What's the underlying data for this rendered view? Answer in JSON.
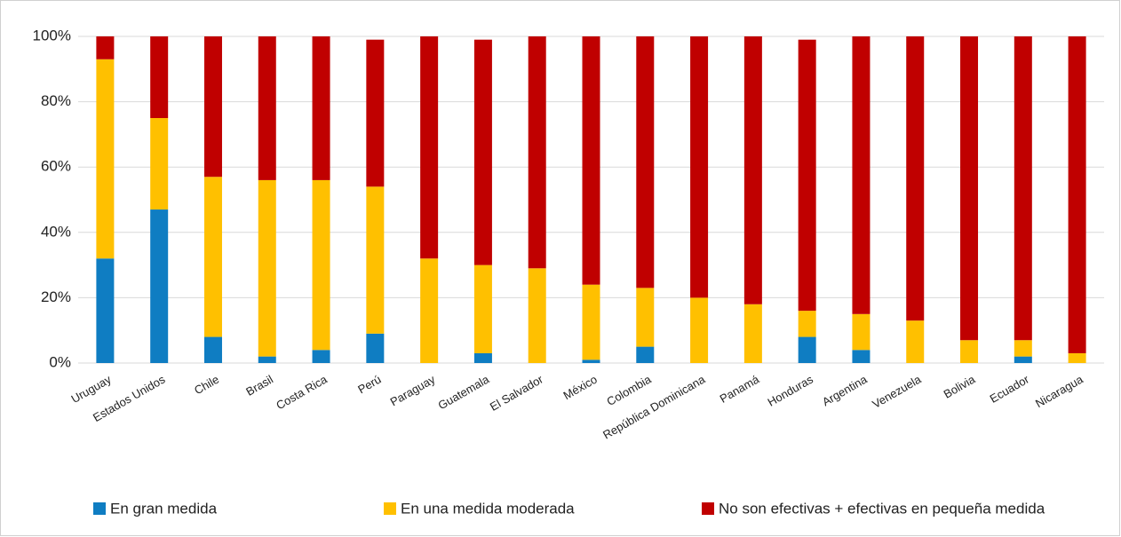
{
  "chart_data": {
    "type": "stacked_bar",
    "categories": [
      "Uruguay",
      "Estados Unidos",
      "Chile",
      "Brasil",
      "Costa Rica",
      "Perú",
      "Paraguay",
      "Guatemala",
      "El Salvador",
      "México",
      "Colombia",
      "República Dominicana",
      "Panamá",
      "Honduras",
      "Argentina",
      "Venezuela",
      "Bolivia",
      "Ecuador",
      "Nicaragua"
    ],
    "series": [
      {
        "name": "En gran medida",
        "color": "#0f7dc2",
        "values": [
          32,
          47,
          8,
          2,
          4,
          9,
          0,
          3,
          0,
          1,
          5,
          0,
          0,
          8,
          4,
          0,
          0,
          2,
          0
        ]
      },
      {
        "name": "En una medida moderada",
        "color": "#ffc000",
        "values": [
          61,
          28,
          49,
          54,
          52,
          45,
          32,
          27,
          29,
          23,
          18,
          20,
          18,
          8,
          11,
          13,
          7,
          5,
          3
        ]
      },
      {
        "name": "No son efectivas + efectivas en pequeña medida",
        "color": "#c00000",
        "values": [
          7,
          25,
          43,
          44,
          44,
          45,
          68,
          69,
          71,
          76,
          77,
          80,
          82,
          83,
          85,
          87,
          93,
          93,
          97
        ]
      }
    ],
    "ylim": [
      0,
      100
    ],
    "yticks": [
      {
        "value": 0,
        "label": "0%"
      },
      {
        "value": 20,
        "label": "20%"
      },
      {
        "value": 40,
        "label": "40%"
      },
      {
        "value": 60,
        "label": "60%"
      },
      {
        "value": 80,
        "label": "80%"
      },
      {
        "value": 100,
        "label": "100%"
      }
    ],
    "grid": true,
    "legend": "bottom"
  }
}
